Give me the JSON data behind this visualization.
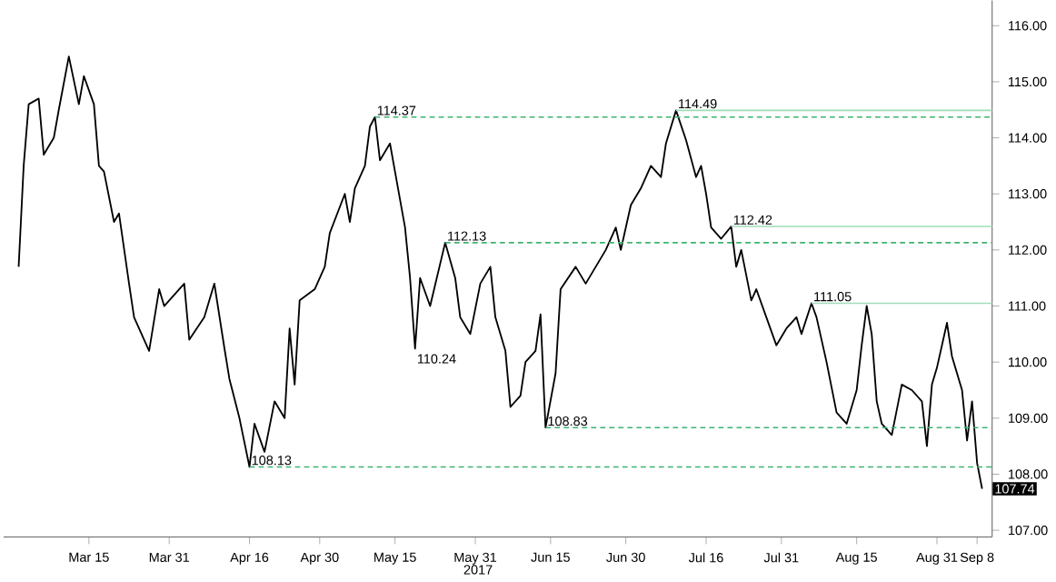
{
  "chart_data": {
    "type": "line",
    "xlabel": "2017",
    "x": [
      "2017-03-01",
      "2017-03-02",
      "2017-03-03",
      "2017-03-05",
      "2017-03-06",
      "2017-03-08",
      "2017-03-09",
      "2017-03-11",
      "2017-03-13",
      "2017-03-14",
      "2017-03-16",
      "2017-03-17",
      "2017-03-18",
      "2017-03-20",
      "2017-03-21",
      "2017-03-23",
      "2017-03-24",
      "2017-03-27",
      "2017-03-29",
      "2017-03-30",
      "2017-04-03",
      "2017-04-04",
      "2017-04-07",
      "2017-04-09",
      "2017-04-11",
      "2017-04-12",
      "2017-04-14",
      "2017-04-16",
      "2017-04-17",
      "2017-04-19",
      "2017-04-21",
      "2017-04-23",
      "2017-04-24",
      "2017-04-25",
      "2017-04-26",
      "2017-04-29",
      "2017-05-01",
      "2017-05-02",
      "2017-05-05",
      "2017-05-06",
      "2017-05-07",
      "2017-05-09",
      "2017-05-10",
      "2017-05-11",
      "2017-05-12",
      "2017-05-14",
      "2017-05-15",
      "2017-05-17",
      "2017-05-18",
      "2017-05-19",
      "2017-05-20",
      "2017-05-22",
      "2017-05-25",
      "2017-05-27",
      "2017-05-28",
      "2017-05-30",
      "2017-06-01",
      "2017-06-03",
      "2017-06-04",
      "2017-06-06",
      "2017-06-07",
      "2017-06-09",
      "2017-06-10",
      "2017-06-12",
      "2017-06-13",
      "2017-06-14",
      "2017-06-16",
      "2017-06-17",
      "2017-06-20",
      "2017-06-22",
      "2017-06-26",
      "2017-06-28",
      "2017-06-29",
      "2017-07-01",
      "2017-07-03",
      "2017-07-05",
      "2017-07-07",
      "2017-07-08",
      "2017-07-10",
      "2017-07-12",
      "2017-07-14",
      "2017-07-15",
      "2017-07-16",
      "2017-07-17",
      "2017-07-19",
      "2017-07-21",
      "2017-07-22",
      "2017-07-23",
      "2017-07-25",
      "2017-07-26",
      "2017-07-28",
      "2017-07-30",
      "2017-08-01",
      "2017-08-03",
      "2017-08-04",
      "2017-08-06",
      "2017-08-07",
      "2017-08-09",
      "2017-08-11",
      "2017-08-13",
      "2017-08-15",
      "2017-08-16",
      "2017-08-17",
      "2017-08-18",
      "2017-08-19",
      "2017-08-20",
      "2017-08-22",
      "2017-08-24",
      "2017-08-26",
      "2017-08-28",
      "2017-08-29",
      "2017-08-30",
      "2017-08-31",
      "2017-09-02",
      "2017-09-03",
      "2017-09-05",
      "2017-09-06",
      "2017-09-07",
      "2017-09-08",
      "2017-09-09"
    ],
    "series": [
      {
        "color": "#000000",
        "values": [
          111.7,
          113.5,
          114.6,
          114.7,
          113.7,
          114.0,
          114.5,
          115.45,
          114.6,
          115.1,
          114.6,
          113.5,
          113.4,
          112.5,
          112.65,
          111.4,
          110.8,
          110.2,
          111.3,
          111.0,
          111.4,
          110.4,
          110.8,
          111.4,
          110.25,
          109.7,
          109.0,
          108.13,
          108.9,
          108.4,
          109.3,
          109.0,
          110.6,
          109.6,
          111.1,
          111.3,
          111.7,
          112.3,
          113.0,
          112.5,
          113.1,
          113.5,
          114.2,
          114.37,
          113.6,
          113.9,
          113.4,
          112.4,
          111.5,
          110.24,
          111.5,
          111.0,
          112.13,
          111.5,
          110.8,
          110.5,
          111.4,
          111.7,
          110.8,
          110.2,
          109.2,
          109.4,
          110.0,
          110.2,
          110.85,
          108.83,
          109.8,
          111.3,
          111.7,
          111.4,
          112.0,
          112.4,
          112.0,
          112.8,
          113.1,
          113.5,
          113.3,
          113.9,
          114.49,
          113.96,
          113.3,
          113.5,
          113.0,
          112.4,
          112.2,
          112.42,
          111.7,
          112.0,
          111.1,
          111.3,
          110.8,
          110.3,
          110.6,
          110.8,
          110.5,
          111.05,
          110.8,
          110.0,
          109.1,
          108.9,
          109.5,
          110.3,
          111.0,
          110.5,
          109.3,
          108.9,
          108.7,
          109.6,
          109.5,
          109.3,
          108.5,
          109.6,
          109.9,
          110.7,
          110.1,
          109.5,
          108.6,
          109.3,
          108.2,
          107.74
        ]
      },
      {
        "type": "line",
        "color": "#3cb371",
        "line_style": "dashed",
        "x": [
          "2017-05-11",
          "2017-09-11"
        ],
        "values": [
          114.37,
          114.37
        ]
      },
      {
        "type": "line",
        "color": "#3cb371",
        "line_style": "dashed",
        "x": [
          "2017-05-25",
          "2017-09-11"
        ],
        "values": [
          112.13,
          112.13
        ]
      },
      {
        "type": "line",
        "color": "#3cb371",
        "line_style": "dashed",
        "x": [
          "2017-06-14",
          "2017-09-11"
        ],
        "values": [
          108.83,
          108.83
        ]
      },
      {
        "type": "line",
        "color": "#3cb371",
        "line_style": "dashed",
        "x": [
          "2017-04-16",
          "2017-09-11"
        ],
        "values": [
          108.13,
          108.13
        ]
      },
      {
        "type": "line",
        "color": "#9fdcb8",
        "line_style": "solid",
        "x": [
          "2017-07-10",
          "2017-09-11"
        ],
        "values": [
          114.49,
          114.49
        ]
      },
      {
        "type": "line",
        "color": "#9fdcb8",
        "line_style": "solid",
        "x": [
          "2017-07-21",
          "2017-09-11"
        ],
        "values": [
          112.42,
          112.42
        ]
      },
      {
        "type": "line",
        "color": "#9fdcb8",
        "line_style": "solid",
        "x": [
          "2017-08-06",
          "2017-09-11"
        ],
        "values": [
          111.05,
          111.05
        ]
      }
    ],
    "annotations": [
      {
        "text": "114.37",
        "x": "2017-05-11",
        "y": 114.37
      },
      {
        "text": "110.24",
        "x": "2017-05-19",
        "y": 110.24
      },
      {
        "text": "112.13",
        "x": "2017-05-25",
        "y": 112.13
      },
      {
        "text": "108.13",
        "x": "2017-04-16",
        "y": 108.13
      },
      {
        "text": "108.83",
        "x": "2017-06-14",
        "y": 108.83
      },
      {
        "text": "114.49",
        "x": "2017-07-10",
        "y": 114.49
      },
      {
        "text": "112.42",
        "x": "2017-07-21",
        "y": 112.42
      },
      {
        "text": "111.05",
        "x": "2017-08-06",
        "y": 111.05
      },
      {
        "text": "107.74",
        "x": "2017-09-09",
        "y": 107.74
      }
    ],
    "xlim": [
      "2017-02-26",
      "2017-09-11"
    ],
    "xticks": [
      {
        "value": "2017-03-15",
        "label": "Mar 15"
      },
      {
        "value": "2017-03-31",
        "label": "Mar 31"
      },
      {
        "value": "2017-04-16",
        "label": "Apr 16"
      },
      {
        "value": "2017-04-30",
        "label": "Apr 30"
      },
      {
        "value": "2017-05-15",
        "label": "May 15"
      },
      {
        "value": "2017-05-31",
        "label": "May 31"
      },
      {
        "value": "2017-06-15",
        "label": "Jun 15"
      },
      {
        "value": "2017-06-30",
        "label": "Jun 30"
      },
      {
        "value": "2017-07-16",
        "label": "Jul 16"
      },
      {
        "value": "2017-07-31",
        "label": "Jul 31"
      },
      {
        "value": "2017-08-15",
        "label": "Aug 15"
      },
      {
        "value": "2017-08-31",
        "label": "Aug 31"
      },
      {
        "value": "2017-09-08",
        "label": "Sep 8"
      }
    ],
    "ylim": [
      106.88,
      116.45
    ],
    "yticks": [
      {
        "value": 107,
        "label": "107.00"
      },
      {
        "value": 108,
        "label": "108.00"
      },
      {
        "value": 109,
        "label": "109.00"
      },
      {
        "value": 110,
        "label": "110.00"
      },
      {
        "value": 111,
        "label": "111.00"
      },
      {
        "value": 112,
        "label": "112.00"
      },
      {
        "value": 113,
        "label": "113.00"
      },
      {
        "value": 114,
        "label": "114.00"
      },
      {
        "value": 115,
        "label": "115.00"
      },
      {
        "value": 116,
        "label": "116.00"
      }
    ],
    "grid": false,
    "marker": "none",
    "line_style": "solid"
  }
}
